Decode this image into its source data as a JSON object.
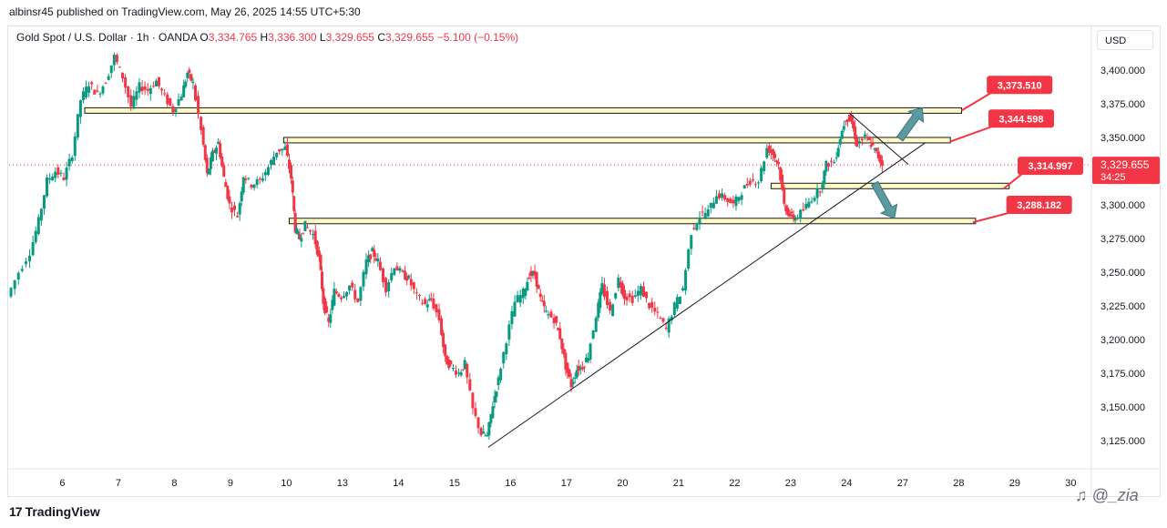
{
  "header": {
    "publisher_line": "albinsr45 published on TradingView.com, May 26, 2025 14:55 UTC+5:30"
  },
  "legend": {
    "symbol": "Gold Spot / U.S. Dollar · 1h · OANDA",
    "o_label": "O",
    "o_value": "3,334.765",
    "h_label": "H",
    "h_value": "3,336.300",
    "l_label": "L",
    "l_value": "3,329.655",
    "c_label": "C",
    "c_value": "3,329.655",
    "change": "−5.100 (−0.15%)"
  },
  "currency_button": "USD",
  "footer": {
    "brand": "TradingView",
    "brand_mark": "17"
  },
  "watermark": "♫ @_zia",
  "colors": {
    "up": "#089981",
    "down": "#f23645",
    "zone_fill": "#fff9c4",
    "tag": "#f23645",
    "arrow": "#5b9aa0"
  },
  "chart_data": {
    "type": "candlestick",
    "instrument": "Gold Spot / U.S. Dollar",
    "timeframe": "1h",
    "ylim": [
      3105,
      3420
    ],
    "y_ticks": [
      3125,
      3150,
      3175,
      3200,
      3225,
      3250,
      3275,
      3300,
      3325,
      3350,
      3375,
      3400
    ],
    "y_tick_labels": [
      "3,125.000",
      "3,150.000",
      "3,175.000",
      "3,200.000",
      "3,225.000",
      "3,250.000",
      "3,275.000",
      "3,300.000",
      "3,325.000",
      "3,350.000",
      "3,375.000",
      "3,400.000"
    ],
    "x_tick_labels": [
      "6",
      "7",
      "8",
      "9",
      "10",
      "13",
      "14",
      "15",
      "16",
      "17",
      "20",
      "21",
      "22",
      "23",
      "24",
      "27",
      "28",
      "29",
      "30"
    ],
    "x_range": [
      0,
      19
    ],
    "x_ticks": [
      0.95,
      1.95,
      2.95,
      3.95,
      4.95,
      5.95,
      6.95,
      7.95,
      8.95,
      9.95,
      10.95,
      11.95,
      12.95,
      13.95,
      14.95,
      15.95,
      16.95,
      17.95,
      18.95
    ],
    "price_path": [
      [
        0.0,
        3232
      ],
      [
        0.2,
        3250
      ],
      [
        0.4,
        3265
      ],
      [
        0.55,
        3288
      ],
      [
        0.7,
        3318
      ],
      [
        0.85,
        3325
      ],
      [
        1.0,
        3320
      ],
      [
        1.15,
        3338
      ],
      [
        1.3,
        3378
      ],
      [
        1.45,
        3390
      ],
      [
        1.6,
        3382
      ],
      [
        1.75,
        3392
      ],
      [
        1.9,
        3410
      ],
      [
        2.05,
        3395
      ],
      [
        2.2,
        3373
      ],
      [
        2.35,
        3388
      ],
      [
        2.5,
        3385
      ],
      [
        2.65,
        3392
      ],
      [
        2.8,
        3380
      ],
      [
        2.95,
        3370
      ],
      [
        3.1,
        3382
      ],
      [
        3.2,
        3398
      ],
      [
        3.3,
        3390
      ],
      [
        3.45,
        3355
      ],
      [
        3.55,
        3322
      ],
      [
        3.65,
        3338
      ],
      [
        3.75,
        3346
      ],
      [
        3.85,
        3320
      ],
      [
        3.95,
        3300
      ],
      [
        4.1,
        3292
      ],
      [
        4.2,
        3322
      ],
      [
        4.35,
        3315
      ],
      [
        4.5,
        3318
      ],
      [
        4.65,
        3328
      ],
      [
        4.8,
        3340
      ],
      [
        4.95,
        3342
      ],
      [
        5.05,
        3320
      ],
      [
        5.12,
        3282
      ],
      [
        5.2,
        3275
      ],
      [
        5.3,
        3285
      ],
      [
        5.45,
        3278
      ],
      [
        5.55,
        3260
      ],
      [
        5.62,
        3228
      ],
      [
        5.72,
        3212
      ],
      [
        5.82,
        3236
      ],
      [
        5.95,
        3232
      ],
      [
        6.1,
        3240
      ],
      [
        6.25,
        3228
      ],
      [
        6.4,
        3258
      ],
      [
        6.5,
        3265
      ],
      [
        6.6,
        3258
      ],
      [
        6.75,
        3238
      ],
      [
        6.9,
        3255
      ],
      [
        7.05,
        3248
      ],
      [
        7.15,
        3245
      ],
      [
        7.3,
        3232
      ],
      [
        7.45,
        3226
      ],
      [
        7.55,
        3230
      ],
      [
        7.7,
        3215
      ],
      [
        7.8,
        3185
      ],
      [
        7.9,
        3180
      ],
      [
        8.05,
        3175
      ],
      [
        8.15,
        3182
      ],
      [
        8.3,
        3148
      ],
      [
        8.45,
        3130
      ],
      [
        8.55,
        3128
      ],
      [
        8.65,
        3152
      ],
      [
        8.75,
        3170
      ],
      [
        8.9,
        3200
      ],
      [
        9.05,
        3228
      ],
      [
        9.2,
        3235
      ],
      [
        9.3,
        3248
      ],
      [
        9.4,
        3248
      ],
      [
        9.5,
        3230
      ],
      [
        9.6,
        3220
      ],
      [
        9.75,
        3215
      ],
      [
        9.85,
        3202
      ],
      [
        9.95,
        3180
      ],
      [
        10.05,
        3166
      ],
      [
        10.15,
        3178
      ],
      [
        10.25,
        3180
      ],
      [
        10.35,
        3188
      ],
      [
        10.5,
        3218
      ],
      [
        10.6,
        3240
      ],
      [
        10.75,
        3220
      ],
      [
        10.9,
        3245
      ],
      [
        11.0,
        3232
      ],
      [
        11.15,
        3230
      ],
      [
        11.3,
        3238
      ],
      [
        11.45,
        3225
      ],
      [
        11.6,
        3218
      ],
      [
        11.75,
        3208
      ],
      [
        11.9,
        3225
      ],
      [
        12.05,
        3238
      ],
      [
        12.2,
        3280
      ],
      [
        12.35,
        3292
      ],
      [
        12.5,
        3295
      ],
      [
        12.65,
        3308
      ],
      [
        12.8,
        3305
      ],
      [
        12.95,
        3300
      ],
      [
        13.1,
        3310
      ],
      [
        13.25,
        3318
      ],
      [
        13.4,
        3318
      ],
      [
        13.55,
        3342
      ],
      [
        13.65,
        3338
      ],
      [
        13.75,
        3330
      ],
      [
        13.85,
        3300
      ],
      [
        13.95,
        3292
      ],
      [
        14.05,
        3290
      ],
      [
        14.2,
        3296
      ],
      [
        14.35,
        3305
      ],
      [
        14.5,
        3312
      ],
      [
        14.6,
        3330
      ],
      [
        14.75,
        3332
      ],
      [
        14.85,
        3350
      ],
      [
        14.95,
        3365
      ],
      [
        15.05,
        3362
      ],
      [
        15.15,
        3345
      ],
      [
        15.3,
        3350
      ],
      [
        15.4,
        3345
      ],
      [
        15.5,
        3338
      ],
      [
        15.6,
        3330
      ]
    ],
    "horizontal_zones": [
      {
        "x_start": 1.35,
        "x_end": 17.0,
        "y": 3370
      },
      {
        "x_start": 4.9,
        "x_end": 16.8,
        "y": 3348
      },
      {
        "x_start": 13.6,
        "x_end": 17.85,
        "y": 3314
      },
      {
        "x_start": 5.0,
        "x_end": 17.25,
        "y": 3288
      }
    ],
    "trendlines": [
      {
        "from": [
          8.55,
          3120
        ],
        "to": [
          16.35,
          3346
        ]
      },
      {
        "from": [
          15.0,
          3368
        ],
        "to": [
          16.05,
          3330
        ]
      }
    ],
    "arrows": [
      {
        "from": [
          15.9,
          3349
        ],
        "to": [
          16.3,
          3372
        ],
        "direction": "up"
      },
      {
        "from": [
          15.45,
          3316
        ],
        "to": [
          15.8,
          3290
        ],
        "direction": "down"
      }
    ],
    "price_tags": [
      {
        "label": "3,373.510",
        "anchor": [
          17.0,
          3370
        ],
        "at": [
          17.45,
          3389
        ]
      },
      {
        "label": "3,344.598",
        "anchor": [
          16.8,
          3347
        ],
        "at": [
          17.48,
          3364
        ]
      },
      {
        "label": "3,314.997",
        "anchor": [
          17.75,
          3312
        ],
        "at": [
          18.0,
          3329
        ]
      },
      {
        "label": "3,288.182",
        "anchor": [
          17.2,
          3287
        ],
        "at": [
          17.8,
          3300
        ]
      }
    ],
    "current_price": {
      "value": 3329.655,
      "label": "3,329.655",
      "countdown": "34:25"
    }
  }
}
